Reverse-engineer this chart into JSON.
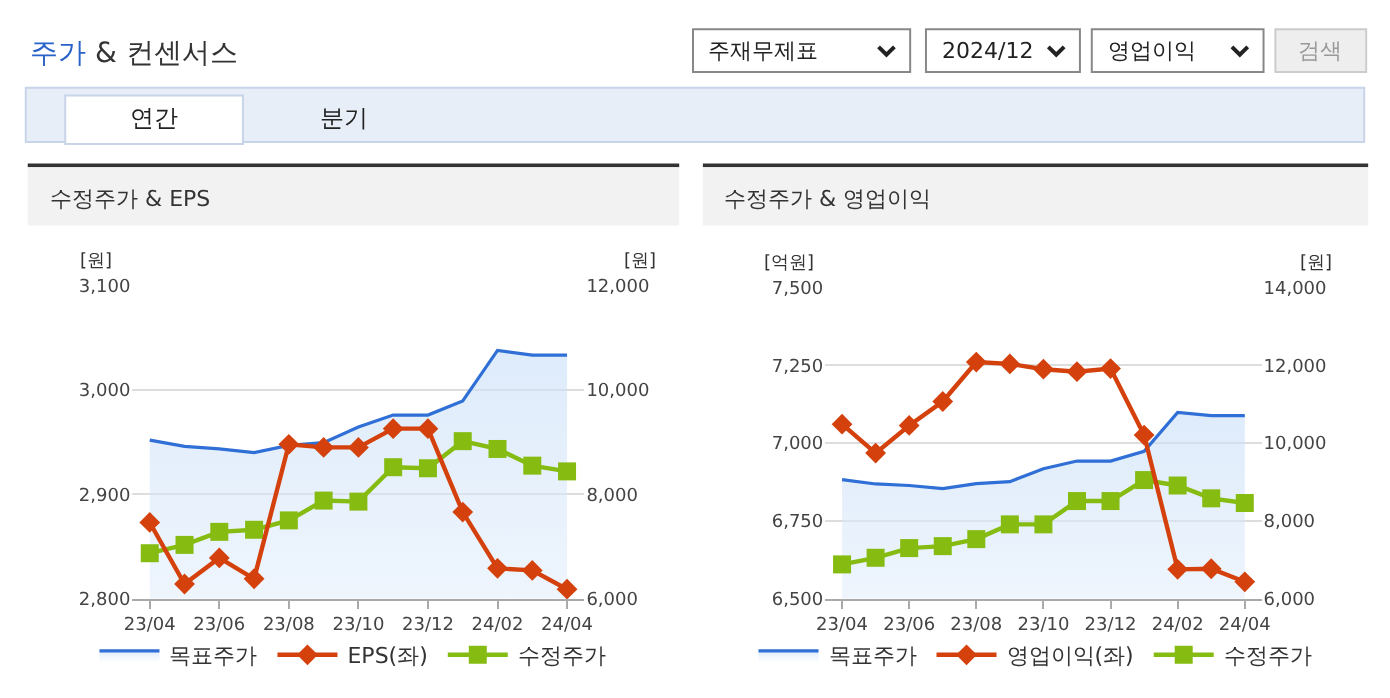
{
  "chart_data": [
    {
      "type": "other",
      "title": "주가 & 컨센서스",
      "annotations": [
        "주재무제표",
        "2024/12",
        "영업이익",
        "검색",
        "연간",
        "분기"
      ]
    },
    {
      "type": "line",
      "title": "수정주가 & EPS",
      "ylabel": "[원]",
      "y2label": "[원]",
      "categories": [
        "23/04",
        null,
        "23/06",
        null,
        "23/08",
        null,
        "23/10",
        null,
        "23/12",
        null,
        "24/02",
        null,
        "24/04"
      ],
      "series": [
        {
          "name": "목표주가",
          "type": "area",
          "axis": "y2",
          "color": "#2f6fd6",
          "marker": "none",
          "values": [
            9040,
            8920,
            8870,
            8800,
            8940,
            8990,
            9290,
            9520,
            9520,
            9790,
            10760,
            10670,
            10670
          ]
        },
        {
          "name": "EPS(좌)",
          "type": "line",
          "axis": "y",
          "color": "#d4410c",
          "marker": "diamond",
          "values": [
            2873,
            2814,
            2839,
            2819,
            2948,
            2945,
            2945,
            2963,
            2963,
            2883,
            2829,
            2827,
            2809
          ]
        },
        {
          "name": "수정주가",
          "type": "line",
          "axis": "y2",
          "color": "#86bc12",
          "marker": "square",
          "values": [
            6870,
            7030,
            7280,
            7320,
            7500,
            7880,
            7860,
            8520,
            8500,
            9020,
            8870,
            8550,
            8440
          ]
        }
      ],
      "ylim": [
        2800,
        3100
      ],
      "yticks": [
        {
          "value": 2800,
          "label": "2,800"
        },
        {
          "value": 2900,
          "label": "2,900"
        },
        {
          "value": 3000,
          "label": "3,000"
        },
        {
          "value": 3100,
          "label": "3,100"
        }
      ],
      "y2lim": [
        6000,
        12000
      ],
      "y2ticks": [
        {
          "value": 6000,
          "label": "6,000"
        },
        {
          "value": 8000,
          "label": "8,000"
        },
        {
          "value": 10000,
          "label": "10,000"
        },
        {
          "value": 12000,
          "label": "12,000"
        }
      ],
      "grid": "y",
      "legend": "bottom",
      "line_style": "solid"
    },
    {
      "type": "line",
      "title": "수정주가 & 영업이익",
      "ylabel": "[억원]",
      "y2label": "[원]",
      "categories": [
        "23/04",
        null,
        "23/06",
        null,
        "23/08",
        null,
        "23/10",
        null,
        "23/12",
        null,
        "24/02",
        null,
        "24/04"
      ],
      "series": [
        {
          "name": "목표주가",
          "type": "area",
          "axis": "y2",
          "color": "#2f6fd6",
          "marker": "none",
          "values": [
            9060,
            8950,
            8910,
            8830,
            8960,
            9010,
            9340,
            9540,
            9540,
            9790,
            10790,
            10710,
            10710
          ]
        },
        {
          "name": "영업이익(좌)",
          "type": "line",
          "axis": "y",
          "color": "#d4410c",
          "marker": "diamond",
          "values": [
            7061,
            6968,
            7057,
            7134,
            7261,
            7255,
            7238,
            7230,
            7240,
            7026,
            6594,
            6596,
            6554
          ]
        },
        {
          "name": "수정주가",
          "type": "line",
          "axis": "y2",
          "color": "#86bc12",
          "marker": "square",
          "values": [
            6880,
            7050,
            7300,
            7350,
            7530,
            7910,
            7910,
            8510,
            8510,
            9050,
            8910,
            8580,
            8460
          ]
        }
      ],
      "ylim": [
        6500,
        7500
      ],
      "yticks": [
        {
          "value": 6500,
          "label": "6,500"
        },
        {
          "value": 6750,
          "label": "6,750"
        },
        {
          "value": 7000,
          "label": "7,000"
        },
        {
          "value": 7250,
          "label": "7,250"
        },
        {
          "value": 7500,
          "label": "7,500"
        }
      ],
      "y2lim": [
        6000,
        14000
      ],
      "y2ticks": [
        {
          "value": 6000,
          "label": "6,000"
        },
        {
          "value": 8000,
          "label": "8,000"
        },
        {
          "value": 10000,
          "label": "10,000"
        },
        {
          "value": 12000,
          "label": "12,000"
        },
        {
          "value": 14000,
          "label": "14,000"
        }
      ],
      "grid": "y",
      "legend": "bottom",
      "line_style": "solid"
    }
  ]
}
